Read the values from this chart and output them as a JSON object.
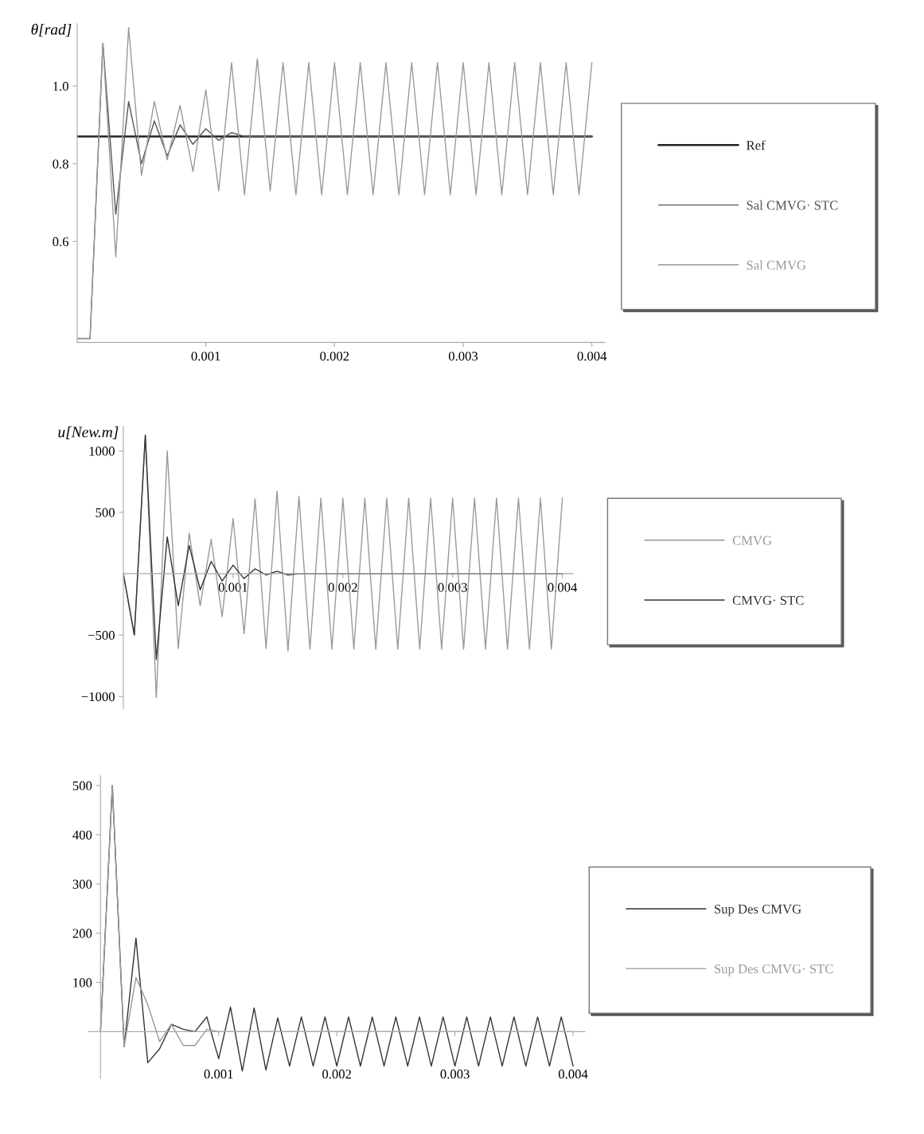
{
  "chart_data": [
    {
      "type": "line",
      "ylabel": "θ[rad]",
      "legend": "right",
      "x": [
        0,
        0.0001,
        0.0002,
        0.0003,
        0.0004,
        0.0005,
        0.0006,
        0.0007,
        0.0008,
        0.0009,
        0.001,
        0.0011,
        0.0012,
        0.0013,
        0.0014,
        0.0015,
        0.0016,
        0.0017,
        0.0018,
        0.0019,
        0.002,
        0.0021,
        0.0022,
        0.0023,
        0.0024,
        0.0025,
        0.0026,
        0.0027,
        0.0028,
        0.0029,
        0.003,
        0.0031,
        0.0032,
        0.0033,
        0.0034,
        0.0035,
        0.0036,
        0.0037,
        0.0038,
        0.0039,
        0.004
      ],
      "series": [
        {
          "name": "Ref",
          "color": "#222222",
          "x": [
            0,
            0.004
          ],
          "values": [
            0.87,
            0.87
          ]
        },
        {
          "name": "Sal CMVG· STC",
          "color": "#555555",
          "values": [
            0.35,
            0.35,
            1.11,
            0.67,
            0.96,
            0.8,
            0.91,
            0.82,
            0.9,
            0.85,
            0.89,
            0.86,
            0.88,
            0.87,
            0.87,
            0.87,
            0.87,
            0.87,
            0.87,
            0.87,
            0.87,
            0.87,
            0.87,
            0.87,
            0.87,
            0.87,
            0.87,
            0.87,
            0.87,
            0.87,
            0.87,
            0.87,
            0.87,
            0.87,
            0.87,
            0.87,
            0.87,
            0.87,
            0.87,
            0.87,
            0.87
          ]
        },
        {
          "name": "Sal CMVG",
          "color": "#999999",
          "values": [
            0.35,
            0.35,
            1.11,
            0.56,
            1.15,
            0.77,
            0.96,
            0.81,
            0.95,
            0.78,
            0.99,
            0.73,
            1.06,
            0.72,
            1.07,
            0.73,
            1.06,
            0.72,
            1.06,
            0.72,
            1.06,
            0.72,
            1.06,
            0.72,
            1.06,
            0.72,
            1.06,
            0.72,
            1.06,
            0.72,
            1.06,
            0.72,
            1.06,
            0.72,
            1.06,
            0.72,
            1.06,
            0.72,
            1.06,
            0.72,
            1.06
          ]
        }
      ],
      "xlim": [
        0,
        0.0041
      ],
      "ylim": [
        0.34,
        1.16
      ],
      "xticks": [
        0.001,
        0.002,
        0.003,
        0.004
      ],
      "yticks": [
        0.6,
        0.8,
        {
          "value": 1.0,
          "label": "1.0"
        }
      ]
    },
    {
      "type": "line",
      "ylabel": "u[New.m]",
      "legend": "right",
      "x": [
        0,
        0.0001,
        0.0002,
        0.0003,
        0.0004,
        0.0005,
        0.0006,
        0.0007,
        0.0008,
        0.0009,
        0.001,
        0.0011,
        0.0012,
        0.0013,
        0.0014,
        0.0015,
        0.0016,
        0.0017,
        0.0018,
        0.0019,
        0.002,
        0.0021,
        0.0022,
        0.0023,
        0.0024,
        0.0025,
        0.0026,
        0.0027,
        0.0028,
        0.0029,
        0.003,
        0.0031,
        0.0032,
        0.0033,
        0.0034,
        0.0035,
        0.0036,
        0.0037,
        0.0038,
        0.0039,
        0.004
      ],
      "series": [
        {
          "name": "CMVG",
          "color": "#999999",
          "values": [
            0,
            -500,
            1130,
            -1010,
            1000,
            -610,
            330,
            -260,
            280,
            -350,
            450,
            -490,
            610,
            -610,
            670,
            -630,
            630,
            -615,
            615,
            -615,
            615,
            -615,
            615,
            -615,
            615,
            -615,
            615,
            -615,
            615,
            -615,
            615,
            -615,
            615,
            -615,
            615,
            -615,
            615,
            -615,
            615,
            -615,
            615
          ]
        },
        {
          "name": "CMVG· STC",
          "color": "#333333",
          "values": [
            0,
            -500,
            1130,
            -700,
            300,
            -260,
            230,
            -130,
            100,
            -60,
            70,
            -40,
            40,
            -10,
            20,
            -10,
            0,
            0,
            0,
            0,
            0,
            0,
            0,
            0,
            0,
            0,
            0,
            0,
            0,
            0,
            0,
            0,
            0,
            0,
            0,
            0,
            0,
            0,
            0,
            0,
            0
          ]
        }
      ],
      "xlim": [
        0,
        0.0041
      ],
      "ylim": [
        -1100,
        1200
      ],
      "xticks": [
        0.001,
        0.002,
        0.003,
        0.004
      ],
      "yticks": [
        {
          "value": -1000,
          "label": "−1000"
        },
        {
          "value": -500,
          "label": "−500"
        },
        500,
        1000
      ]
    },
    {
      "type": "line",
      "legend": "right",
      "x": [
        0,
        0.0001,
        0.0002,
        0.0003,
        0.0004,
        0.0005,
        0.0006,
        0.0007,
        0.0008,
        0.0009,
        0.001,
        0.0011,
        0.0012,
        0.0013,
        0.0014,
        0.0015,
        0.0016,
        0.0017,
        0.0018,
        0.0019,
        0.002,
        0.0021,
        0.0022,
        0.0023,
        0.0024,
        0.0025,
        0.0026,
        0.0027,
        0.0028,
        0.0029,
        0.003,
        0.0031,
        0.0032,
        0.0033,
        0.0034,
        0.0035,
        0.0036,
        0.0037,
        0.0038,
        0.0039,
        0.004
      ],
      "series": [
        {
          "name": "Sup Des CMVG",
          "color": "#333333",
          "values": [
            0,
            500,
            -30,
            190,
            -63,
            -35,
            15,
            5,
            0,
            30,
            -55,
            50,
            -80,
            48,
            -78,
            28,
            -70,
            30,
            -70,
            30,
            -70,
            30,
            -70,
            30,
            -70,
            30,
            -70,
            30,
            -70,
            30,
            -70,
            30,
            -70,
            30,
            -70,
            30,
            -70,
            30,
            -70,
            30,
            -70
          ]
        },
        {
          "name": "Sup Des CMVG· STC",
          "color": "#999999",
          "values": [
            0,
            500,
            -30,
            110,
            55,
            -20,
            15,
            -28,
            -28,
            5,
            0,
            0,
            0,
            0,
            0,
            0,
            0,
            0,
            0,
            0,
            0,
            0,
            0,
            0,
            0,
            0,
            0,
            0,
            0,
            0,
            0,
            0,
            0,
            0,
            0,
            0,
            0,
            0,
            0,
            0,
            0
          ]
        }
      ],
      "xlim": [
        -0.0001,
        0.0041
      ],
      "ylim": [
        -95,
        520
      ],
      "xticks": [
        0.001,
        0.002,
        0.003,
        0.004
      ],
      "yticks": [
        100,
        200,
        300,
        400,
        500
      ]
    }
  ]
}
